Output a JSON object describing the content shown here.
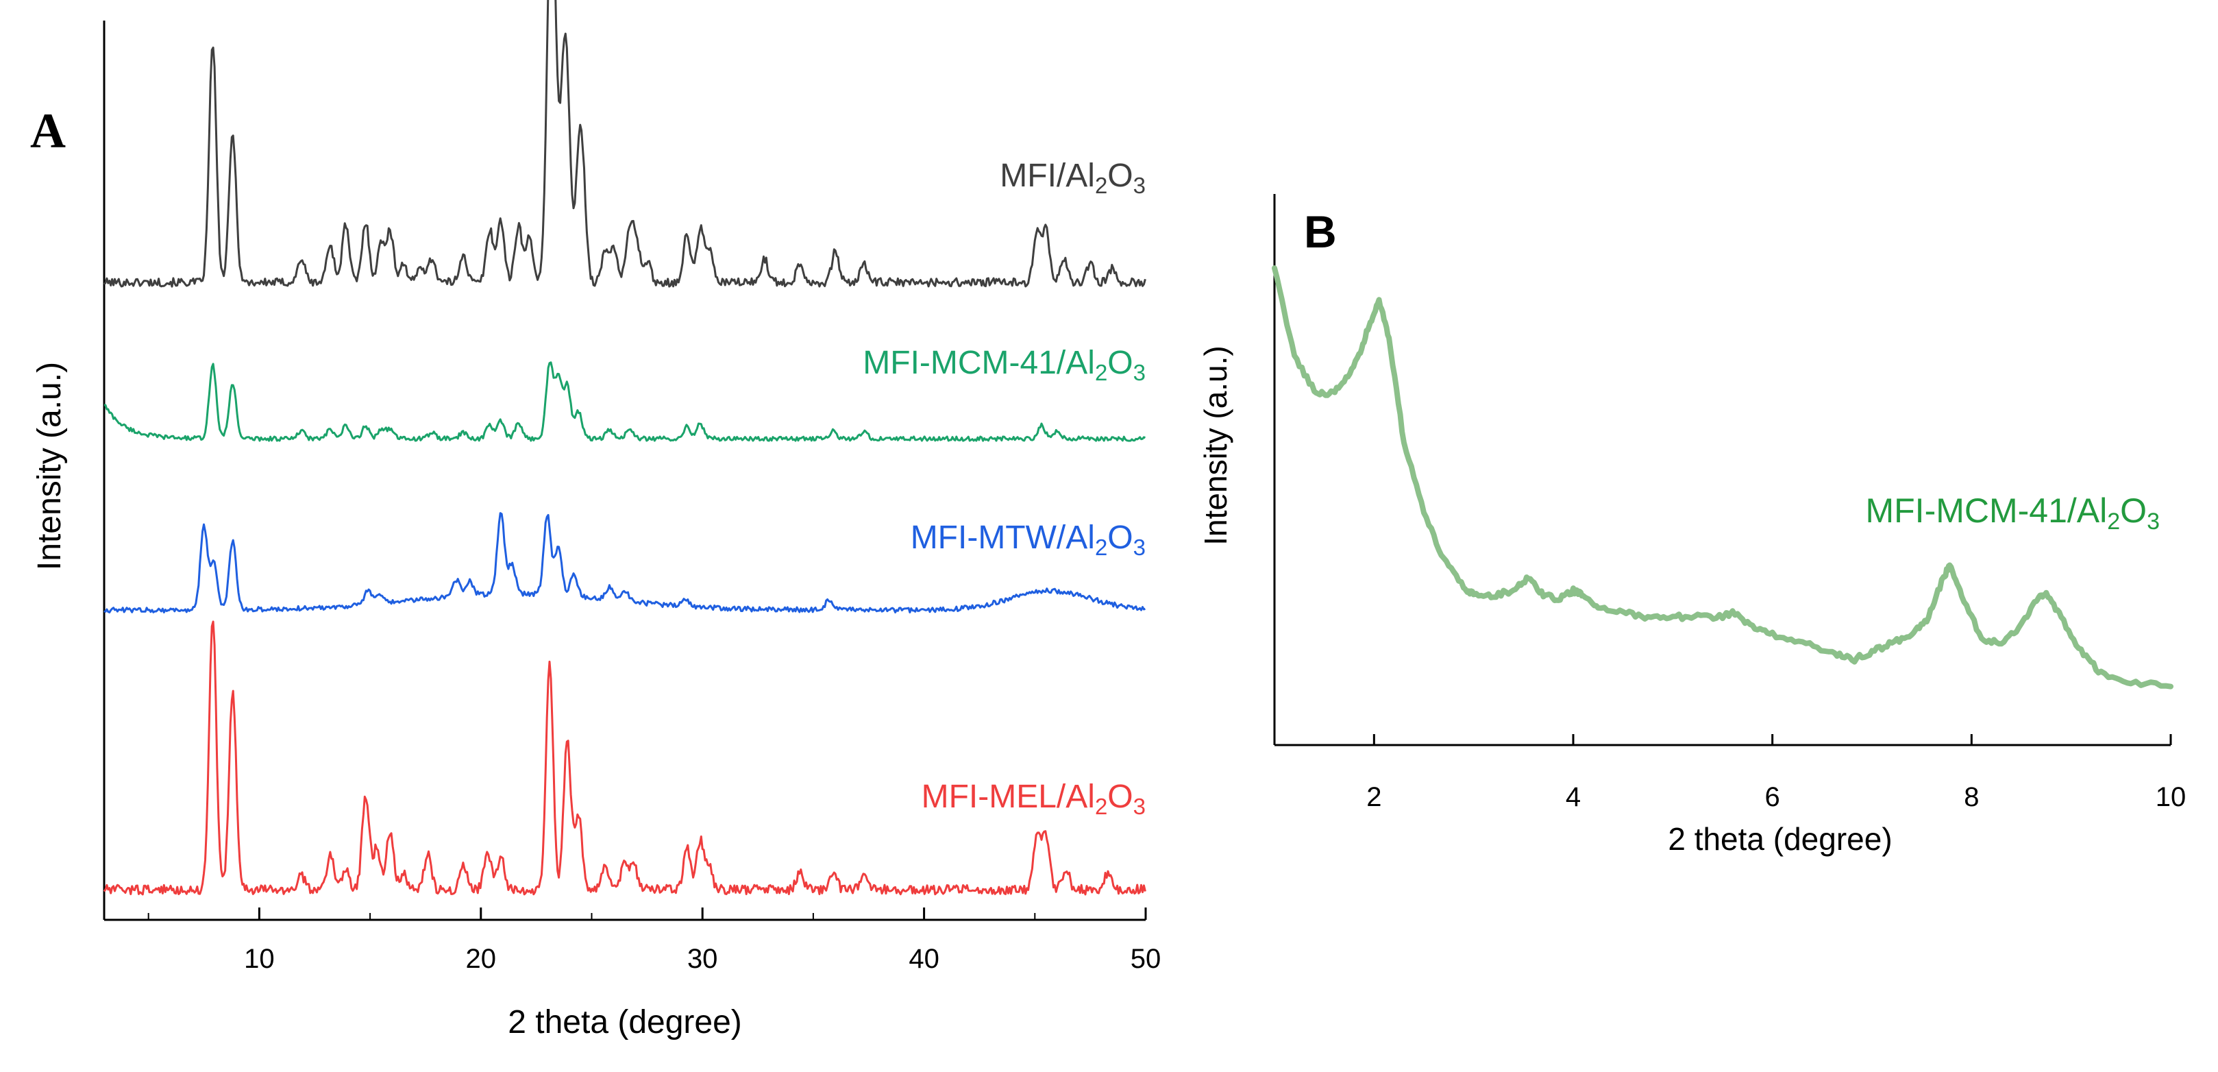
{
  "chart_data": [
    {
      "panel_letter": "A",
      "type": "line",
      "xlabel": "2 theta (degree)",
      "ylabel": "Intensity (a.u.)",
      "xlim": [
        3,
        50
      ],
      "xticks": [
        10,
        20,
        30,
        40,
        50
      ],
      "xtick_labels": [
        "10",
        "20",
        "30",
        "40",
        "50"
      ],
      "y_units": "arbitrary (stacked, offset traces)",
      "grid": false,
      "series": [
        {
          "name": "MFI/Al2O3",
          "label_main": "MFI/Al",
          "label_sub1": "2",
          "label_mid": "O",
          "label_sub2": "3",
          "color": "#3f3f3f",
          "stack_level": 3,
          "peaks": [
            [
              7.9,
              1.0
            ],
            [
              8.8,
              0.62
            ],
            [
              11.9,
              0.1
            ],
            [
              13.2,
              0.16
            ],
            [
              13.9,
              0.24
            ],
            [
              14.8,
              0.25
            ],
            [
              15.5,
              0.16
            ],
            [
              15.9,
              0.21
            ],
            [
              16.5,
              0.08
            ],
            [
              17.3,
              0.07
            ],
            [
              17.8,
              0.1
            ],
            [
              19.2,
              0.12
            ],
            [
              20.4,
              0.22
            ],
            [
              20.9,
              0.26
            ],
            [
              21.7,
              0.24
            ],
            [
              22.2,
              0.19
            ],
            [
              23.1,
              1.05
            ],
            [
              23.3,
              0.95
            ],
            [
              23.7,
              0.6
            ],
            [
              23.9,
              0.65
            ],
            [
              24.4,
              0.4
            ],
            [
              24.6,
              0.38
            ],
            [
              25.6,
              0.12
            ],
            [
              26.0,
              0.15
            ],
            [
              26.7,
              0.2
            ],
            [
              27.0,
              0.18
            ],
            [
              27.5,
              0.09
            ],
            [
              29.3,
              0.2
            ],
            [
              29.9,
              0.22
            ],
            [
              30.3,
              0.14
            ],
            [
              32.8,
              0.1
            ],
            [
              34.4,
              0.08
            ],
            [
              36.0,
              0.13
            ],
            [
              37.3,
              0.08
            ],
            [
              45.1,
              0.2
            ],
            [
              45.5,
              0.22
            ],
            [
              46.3,
              0.1
            ],
            [
              47.5,
              0.08
            ],
            [
              48.5,
              0.06
            ]
          ],
          "baseline": 0.0
        },
        {
          "name": "MFI-MCM-41/Al2O3",
          "label_main": "MFI-MCM-41/Al",
          "label_sub1": "2",
          "label_mid": "O",
          "label_sub2": "3",
          "color": "#1aa36a",
          "stack_level": 2,
          "peaks": [
            [
              7.9,
              0.6
            ],
            [
              8.8,
              0.45
            ],
            [
              11.9,
              0.06
            ],
            [
              13.2,
              0.07
            ],
            [
              13.9,
              0.1
            ],
            [
              14.8,
              0.1
            ],
            [
              15.5,
              0.08
            ],
            [
              15.9,
              0.08
            ],
            [
              17.8,
              0.05
            ],
            [
              19.2,
              0.05
            ],
            [
              20.4,
              0.11
            ],
            [
              20.9,
              0.14
            ],
            [
              21.7,
              0.12
            ],
            [
              23.1,
              0.6
            ],
            [
              23.5,
              0.48
            ],
            [
              23.9,
              0.42
            ],
            [
              24.4,
              0.22
            ],
            [
              25.8,
              0.07
            ],
            [
              26.7,
              0.08
            ],
            [
              29.3,
              0.1
            ],
            [
              29.9,
              0.12
            ],
            [
              35.9,
              0.06
            ],
            [
              37.3,
              0.05
            ],
            [
              45.3,
              0.11
            ],
            [
              46.0,
              0.06
            ]
          ],
          "low_angle_rise": true,
          "baseline": 0.0
        },
        {
          "name": "MFI-MTW/Al2O3",
          "label_main": "MFI-MTW/Al",
          "label_sub1": "2",
          "label_mid": "O",
          "label_sub2": "3",
          "color": "#1f5fe0",
          "stack_level": 1,
          "peaks": [
            [
              7.5,
              0.6
            ],
            [
              7.95,
              0.35
            ],
            [
              8.8,
              0.5
            ],
            [
              14.9,
              0.1
            ],
            [
              15.4,
              0.07
            ],
            [
              18.9,
              0.12
            ],
            [
              19.5,
              0.1
            ],
            [
              20.9,
              0.6
            ],
            [
              21.4,
              0.22
            ],
            [
              23.0,
              0.58
            ],
            [
              23.5,
              0.34
            ],
            [
              24.2,
              0.16
            ],
            [
              25.8,
              0.09
            ],
            [
              26.5,
              0.08
            ],
            [
              29.2,
              0.06
            ],
            [
              35.7,
              0.07
            ]
          ],
          "broad_humps": [
            [
              21.5,
              4.5,
              0.12
            ],
            [
              45.7,
              1.8,
              0.14
            ]
          ],
          "baseline": 0.0
        },
        {
          "name": "MFI-MEL/Al2O3",
          "label_main": "MFI-MEL/Al",
          "label_sub1": "2",
          "label_mid": "O",
          "label_sub2": "3",
          "color": "#ef3d3d",
          "stack_level": 0,
          "peaks": [
            [
              7.9,
              1.0
            ],
            [
              8.8,
              0.73
            ],
            [
              11.9,
              0.05
            ],
            [
              13.2,
              0.13
            ],
            [
              13.9,
              0.08
            ],
            [
              14.8,
              0.34
            ],
            [
              15.3,
              0.15
            ],
            [
              15.9,
              0.21
            ],
            [
              16.5,
              0.06
            ],
            [
              17.6,
              0.13
            ],
            [
              19.2,
              0.09
            ],
            [
              20.3,
              0.14
            ],
            [
              20.9,
              0.12
            ],
            [
              23.1,
              0.84
            ],
            [
              23.9,
              0.55
            ],
            [
              24.4,
              0.28
            ],
            [
              25.6,
              0.08
            ],
            [
              26.5,
              0.1
            ],
            [
              26.9,
              0.09
            ],
            [
              29.3,
              0.15
            ],
            [
              29.9,
              0.18
            ],
            [
              30.3,
              0.08
            ],
            [
              34.4,
              0.06
            ],
            [
              35.9,
              0.07
            ],
            [
              37.3,
              0.06
            ],
            [
              45.1,
              0.2
            ],
            [
              45.5,
              0.2
            ],
            [
              46.4,
              0.08
            ],
            [
              48.3,
              0.06
            ]
          ],
          "baseline": 0.0
        }
      ]
    },
    {
      "panel_letter": "B",
      "type": "line",
      "xlabel": "2 theta (degree)",
      "ylabel": "Intensity (a.u.)",
      "xlim": [
        1,
        10
      ],
      "xticks": [
        2,
        4,
        6,
        8,
        10
      ],
      "xtick_labels": [
        "2",
        "4",
        "6",
        "8",
        "10"
      ],
      "grid": false,
      "series": [
        {
          "name": "MFI-MCM-41/Al2O3",
          "label_main": "MFI-MCM-41/Al",
          "label_sub1": "2",
          "label_mid": "O",
          "label_sub2": "3",
          "color": "#8cc08a",
          "x": [
            1.0,
            1.2,
            1.4,
            1.55,
            1.7,
            1.85,
            1.95,
            2.05,
            2.15,
            2.3,
            2.5,
            2.7,
            2.9,
            3.0,
            3.2,
            3.4,
            3.55,
            3.7,
            3.85,
            4.0,
            4.1,
            4.25,
            4.5,
            4.75,
            5.0,
            5.25,
            5.5,
            5.6,
            5.8,
            6.0,
            6.3,
            6.6,
            6.8,
            7.0,
            7.2,
            7.4,
            7.55,
            7.7,
            7.78,
            7.9,
            8.1,
            8.3,
            8.5,
            8.65,
            8.75,
            8.9,
            9.1,
            9.3,
            9.6,
            10.0
          ],
          "y": [
            1.0,
            0.8,
            0.72,
            0.71,
            0.74,
            0.8,
            0.87,
            0.93,
            0.84,
            0.6,
            0.44,
            0.33,
            0.27,
            0.25,
            0.25,
            0.26,
            0.29,
            0.25,
            0.24,
            0.26,
            0.25,
            0.22,
            0.21,
            0.2,
            0.2,
            0.2,
            0.2,
            0.21,
            0.18,
            0.16,
            0.14,
            0.12,
            0.1,
            0.12,
            0.14,
            0.16,
            0.19,
            0.28,
            0.32,
            0.25,
            0.15,
            0.14,
            0.18,
            0.24,
            0.25,
            0.2,
            0.12,
            0.07,
            0.05,
            0.04
          ]
        }
      ]
    }
  ]
}
